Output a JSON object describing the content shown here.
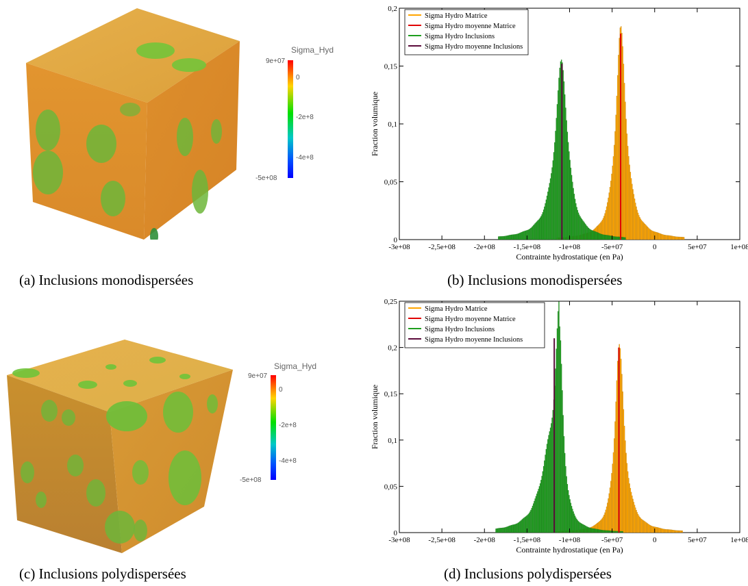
{
  "captions": {
    "a": "(a) Inclusions monodispersées",
    "b": "(b) Inclusions monodispersées",
    "c": "(c) Inclusions polydispersées",
    "d": "(d) Inclusions polydispersées"
  },
  "colorbars": [
    {
      "title": "Sigma_Hyd",
      "max_label": "9e+07",
      "min_label": "-5e+08",
      "ticks": [
        "0",
        "-2e+8",
        "-4e+8"
      ]
    },
    {
      "title": "Sigma_Hyd",
      "max_label": "9e+07",
      "min_label": "-5e+08",
      "ticks": [
        "0",
        "-2e+8",
        "-4e+8"
      ]
    }
  ],
  "colors": {
    "matrice": "#ffa500",
    "matrice_moy": "#e00000",
    "inclusions": "#1e9e1e",
    "inclusions_moy": "#5a0a3a"
  },
  "chart_data": [
    {
      "type": "bar",
      "xlabel": "Contrainte hydrostatique (en Pa)",
      "ylabel": "Fraction volumique",
      "xlim": [
        -300000000,
        100000000
      ],
      "ylim": [
        0,
        0.2
      ],
      "x_ticks": [
        -300000000,
        -250000000,
        -200000000,
        -150000000,
        -100000000,
        -50000000,
        0,
        50000000,
        100000000
      ],
      "x_tick_labels": [
        "-3e+08",
        "-2,5e+08",
        "-2e+08",
        "-1,5e+08",
        "-1e+08",
        "-5e+07",
        "0",
        "5e+07",
        "1e+08"
      ],
      "y_ticks": [
        0,
        0.05,
        0.1,
        0.15,
        0.2
      ],
      "y_tick_labels": [
        "0",
        "0,05",
        "0,1",
        "0,15",
        "0,2"
      ],
      "legend_position": "top-left",
      "series": [
        {
          "name": "Sigma Hydro Matrice",
          "kind": "histogram",
          "color": "#ffa500",
          "center": -40000000,
          "peak": 0.178,
          "width_left": 8000000,
          "width_right": 9000000
        },
        {
          "name": "Sigma Hydro moyenne Matrice",
          "kind": "vline",
          "color": "#e00000",
          "x": -40000000,
          "height": 0.178
        },
        {
          "name": "Sigma Hydro Inclusions",
          "kind": "histogram",
          "color": "#1e9e1e",
          "center": -109000000,
          "peak": 0.152,
          "width_left": 11000000,
          "width_right": 9500000
        },
        {
          "name": "Sigma Hydro moyenne Inclusions",
          "kind": "vline",
          "color": "#5a0a3a",
          "x": -109000000,
          "height": 0.152
        }
      ]
    },
    {
      "type": "bar",
      "xlabel": "Contrainte hydrostatique (en Pa)",
      "ylabel": "Fraction volumique",
      "xlim": [
        -300000000,
        100000000
      ],
      "ylim": [
        0,
        0.25
      ],
      "x_ticks": [
        -300000000,
        -250000000,
        -200000000,
        -150000000,
        -100000000,
        -50000000,
        0,
        50000000,
        100000000
      ],
      "x_tick_labels": [
        "-3e+08",
        "-2,5e+08",
        "-2e+08",
        "-1,5e+08",
        "-1e+08",
        "-5e+07",
        "0",
        "5e+07",
        "1e+08"
      ],
      "y_ticks": [
        0,
        0.05,
        0.1,
        0.15,
        0.2,
        0.25
      ],
      "y_tick_labels": [
        "0",
        "0,05",
        "0,1",
        "0,15",
        "0,2",
        "0,25"
      ],
      "legend_position": "top-left",
      "series": [
        {
          "name": "Sigma Hydro Matrice",
          "kind": "histogram",
          "color": "#ffa500",
          "center": -42000000,
          "peak": 0.2,
          "width_left": 6500000,
          "width_right": 8500000
        },
        {
          "name": "Sigma Hydro moyenne Matrice",
          "kind": "vline",
          "color": "#e00000",
          "x": -42000000,
          "height": 0.2
        },
        {
          "name": "Sigma Hydro Inclusions",
          "kind": "histogram",
          "color": "#1e9e1e",
          "center": -112000000,
          "peak": 0.21,
          "width_left": 7000000,
          "width_right": 6000000,
          "shoulder_center": -125000000,
          "shoulder_peak": 0.06,
          "shoulder_width": 15000000
        },
        {
          "name": "Sigma Hydro moyenne Inclusions",
          "kind": "vline",
          "color": "#5a0a3a",
          "x": -118000000,
          "height": 0.21
        }
      ]
    }
  ]
}
